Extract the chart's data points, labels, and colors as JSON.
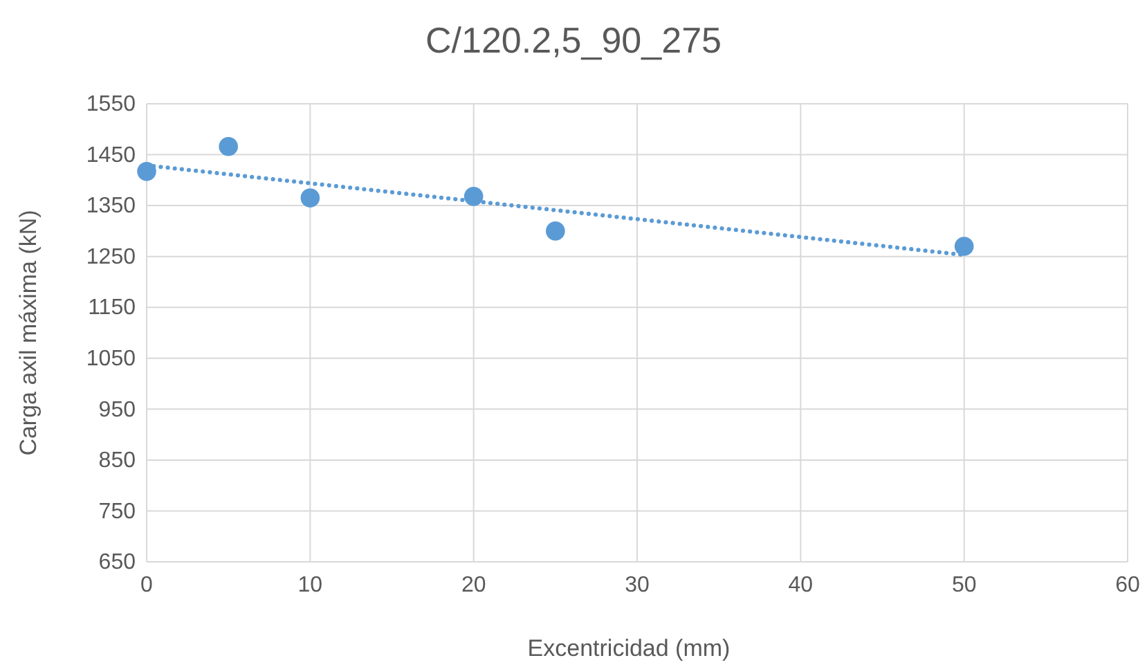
{
  "chart_data": {
    "type": "scatter",
    "title": "C/120.2,5_90_275",
    "xlabel": "Excentricidad (mm)",
    "ylabel": "Carga axil máxima (kN)",
    "series": [
      {
        "color": "#5b9bd5",
        "x": [
          0,
          5,
          10,
          20,
          25,
          50
        ],
        "values": [
          1417,
          1466,
          1365,
          1368,
          1300,
          1270
        ],
        "marker": "circle"
      },
      {
        "type": "line",
        "color": "#5b9bd5",
        "x": [
          0,
          50
        ],
        "values": [
          1429,
          1253
        ],
        "line_style": "dotted",
        "marker": "none"
      }
    ],
    "xlim": [
      0,
      60
    ],
    "xticks": [
      0,
      10,
      20,
      30,
      40,
      50,
      60
    ],
    "ylim": [
      650,
      1550
    ],
    "yticks": [
      650,
      750,
      850,
      950,
      1050,
      1150,
      1250,
      1350,
      1450,
      1550
    ],
    "grid": true
  }
}
